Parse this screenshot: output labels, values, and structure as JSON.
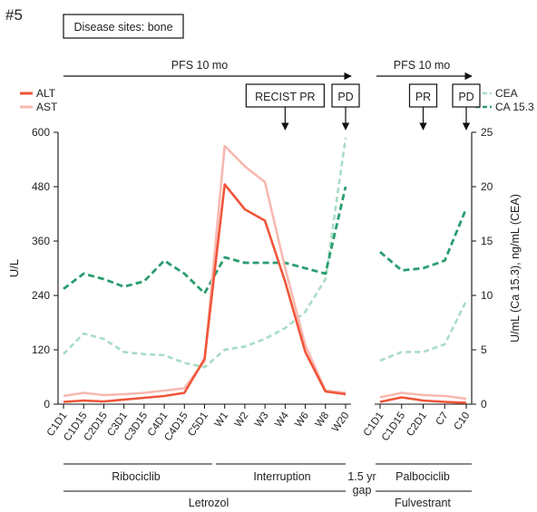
{
  "figure_label": "#5",
  "disease_box": "Disease sites: bone",
  "chart_data": {
    "type": "line",
    "panels": [
      {
        "categories": [
          "C1D1",
          "C1D15",
          "C2D15",
          "C3D1",
          "C3D15",
          "C4D1",
          "C4D15",
          "C5D1",
          "W1",
          "W2",
          "W3",
          "W4",
          "W6",
          "W8",
          "W20"
        ],
        "pfs_label": "PFS 10 mo",
        "events": [
          {
            "label": "RECIST PR",
            "at": "W4"
          },
          {
            "label": "PD",
            "at": "W20"
          }
        ],
        "series": [
          {
            "name": "ALT",
            "axis": "left",
            "values": [
              5,
              8,
              6,
              10,
              14,
              18,
              25,
              100,
              485,
              430,
              405,
              270,
              115,
              28,
              22
            ]
          },
          {
            "name": "AST",
            "axis": "left",
            "values": [
              18,
              25,
              20,
              22,
              25,
              30,
              35,
              95,
              570,
              525,
              490,
              300,
              130,
              30,
              25
            ]
          },
          {
            "name": "CEA",
            "axis": "right",
            "values": [
              4.6,
              6.5,
              6.0,
              4.8,
              4.6,
              4.5,
              3.8,
              3.4,
              5.0,
              5.3,
              6.0,
              7.0,
              8.5,
              11.5,
              24.5
            ]
          },
          {
            "name": "CA 15.3",
            "axis": "right",
            "values": [
              10.6,
              12.0,
              11.5,
              10.8,
              11.3,
              13.2,
              12.0,
              10.2,
              13.5,
              13.0,
              13.0,
              13.0,
              12.5,
              12.0,
              20.0
            ]
          }
        ],
        "therapy_top": "Ribociclib",
        "therapy_top_2": "Interruption",
        "therapy_bottom": "Letrozol"
      },
      {
        "categories": [
          "C1D1",
          "C1D15",
          "C2D1",
          "C7",
          "C10"
        ],
        "pfs_label": "PFS 10 mo",
        "events": [
          {
            "label": "PR",
            "at": "C2D1"
          },
          {
            "label": "PD",
            "at": "C10"
          }
        ],
        "series": [
          {
            "name": "ALT",
            "axis": "left",
            "values": [
              5,
              15,
              8,
              5,
              3
            ]
          },
          {
            "name": "AST",
            "axis": "left",
            "values": [
              15,
              25,
              20,
              18,
              12
            ]
          },
          {
            "name": "CEA",
            "axis": "right",
            "values": [
              4.0,
              4.8,
              4.8,
              5.5,
              9.5
            ]
          },
          {
            "name": "CA 15.3",
            "axis": "right",
            "values": [
              14.0,
              12.3,
              12.5,
              13.2,
              18.0
            ]
          }
        ],
        "therapy_top": "Palbociclib",
        "therapy_bottom": "Fulvestrant"
      }
    ],
    "gap_label_1": "1.5 yr",
    "gap_label_2": "gap",
    "left_axis": {
      "label": "U/L",
      "range": [
        0,
        600
      ],
      "ticks": [
        0,
        120,
        240,
        360,
        480,
        600
      ]
    },
    "right_axis": {
      "label": "U/mL (Ca 15.3), ng/mL (CEA)",
      "range": [
        0,
        25
      ],
      "ticks": [
        0,
        5,
        10,
        15,
        20,
        25
      ]
    },
    "legend_left": [
      {
        "name": "ALT",
        "color": "#f0553a",
        "style": "solid"
      },
      {
        "name": "AST",
        "color": "#f7b9b0",
        "style": "solid"
      }
    ],
    "legend_right": [
      {
        "name": "CEA",
        "color": "#a8dcc4",
        "style": "dashed"
      },
      {
        "name": "CA 15.3",
        "color": "#2a9d6e",
        "style": "dashed"
      }
    ],
    "colors": {
      "ALT": "#f0553a",
      "AST": "#f7b9b0",
      "CEA": "#a8dcc4",
      "CA 15.3": "#2a9d6e"
    }
  }
}
